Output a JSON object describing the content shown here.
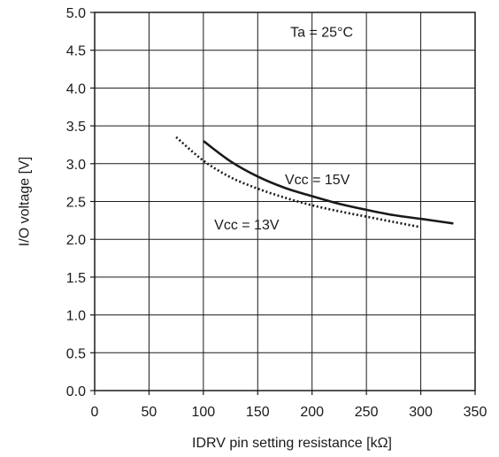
{
  "chart_data": {
    "type": "line",
    "xlabel": "IDRV pin setting resistance [kΩ]",
    "ylabel": "I/O voltage [V]",
    "xlim": [
      0,
      350
    ],
    "ylim": [
      0,
      5.0
    ],
    "x_ticks": [
      "0",
      "50",
      "100",
      "150",
      "200",
      "250",
      "300",
      "350"
    ],
    "y_ticks": [
      "0.0",
      "0.5",
      "1.0",
      "1.5",
      "2.0",
      "2.5",
      "3.0",
      "3.5",
      "4.0",
      "4.5",
      "5.0"
    ],
    "grid": true,
    "series": [
      {
        "name": "Vcc = 15V",
        "style": "solid",
        "x": [
          100,
          125,
          150,
          175,
          200,
          225,
          250,
          275,
          300,
          330
        ],
        "values": [
          3.3,
          3.03,
          2.83,
          2.68,
          2.57,
          2.47,
          2.39,
          2.32,
          2.27,
          2.21
        ]
      },
      {
        "name": "Vcc = 13V",
        "style": "dotted",
        "x": [
          75,
          100,
          125,
          150,
          175,
          200,
          225,
          250,
          275,
          300
        ],
        "values": [
          3.35,
          3.04,
          2.82,
          2.67,
          2.55,
          2.45,
          2.37,
          2.3,
          2.23,
          2.16
        ]
      }
    ],
    "annotations": [
      {
        "text": "Ta = 25°C",
        "x": 180,
        "y": 4.75
      },
      {
        "text": "Vcc = 15V",
        "x": 175,
        "y": 2.8
      },
      {
        "text": "Vcc = 13V",
        "x": 110,
        "y": 2.2
      }
    ],
    "line_color": "#1a1a1a"
  }
}
